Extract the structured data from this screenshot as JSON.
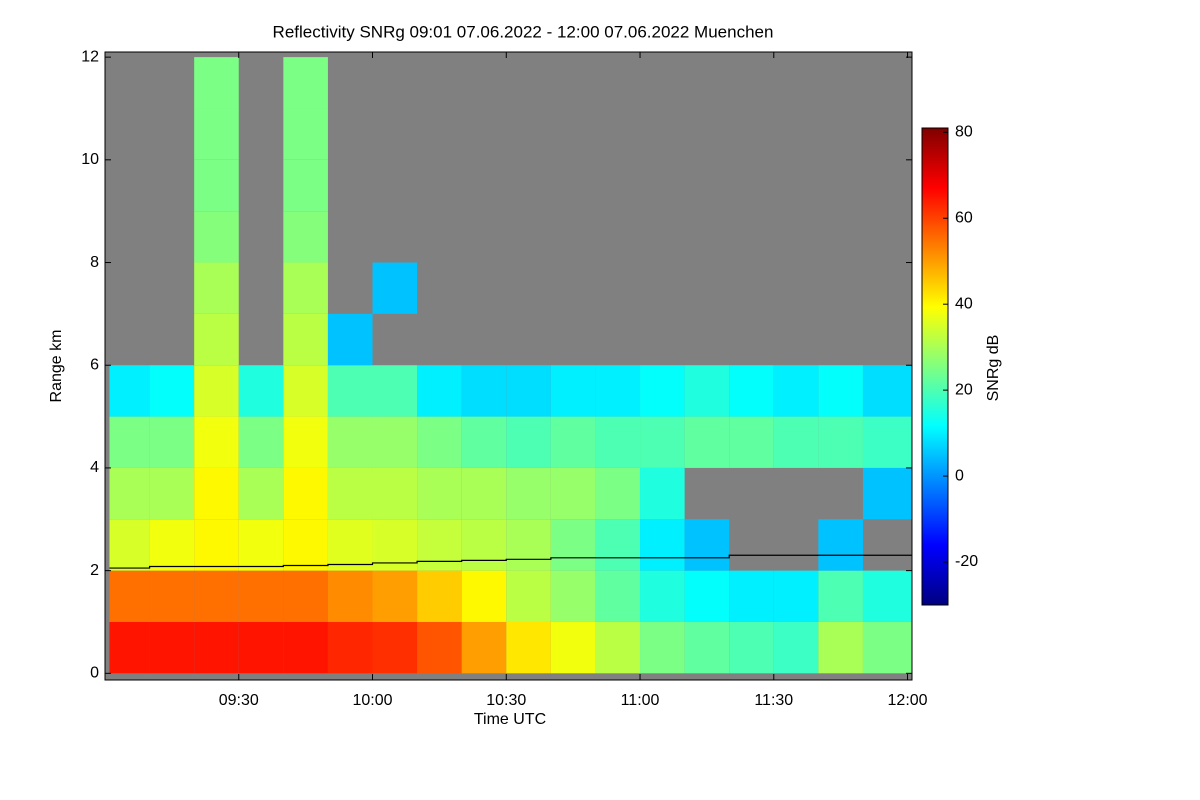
{
  "chart_data": {
    "type": "heatmap",
    "title": "Reflectivity SNRg   09:01 07.06.2022 - 12:00 07.06.2022 Muenchen",
    "xlabel": "Time UTC",
    "ylabel": "Range km",
    "colorbar_label": "SNRg dB",
    "x": [
      "09:01",
      "09:10",
      "09:20",
      "09:30",
      "09:40",
      "09:50",
      "10:00",
      "10:10",
      "10:20",
      "10:30",
      "10:40",
      "10:50",
      "11:00",
      "11:10",
      "11:20",
      "11:30",
      "11:40",
      "11:50"
    ],
    "xlim": [
      "09:00",
      "12:01"
    ],
    "xticks": [
      "09:30",
      "10:00",
      "10:30",
      "11:00",
      "11:30",
      "12:00"
    ],
    "y_edges": [
      0,
      1,
      2,
      3,
      4,
      5,
      6,
      7,
      8,
      9,
      10,
      11,
      12
    ],
    "ylim": [
      -0.13,
      12.1
    ],
    "yticks": [
      0,
      2,
      4,
      6,
      8,
      10,
      12
    ],
    "zlim": [
      -30,
      81
    ],
    "zticks": [
      -20,
      0,
      20,
      40,
      60,
      80
    ],
    "colormap": [
      "#000080",
      "#0000ff",
      "#0080ff",
      "#00ffff",
      "#80ff80",
      "#ffff00",
      "#ff8000",
      "#ff0000",
      "#800000"
    ],
    "background": "#808080",
    "values": [
      [
        65,
        65,
        65,
        65,
        65,
        63,
        62,
        58,
        50,
        42,
        38,
        32,
        25,
        22,
        20,
        18,
        30,
        25
      ],
      [
        55,
        55,
        55,
        55,
        55,
        52,
        50,
        45,
        40,
        32,
        28,
        22,
        15,
        12,
        10,
        10,
        20,
        15
      ],
      [
        35,
        38,
        40,
        38,
        40,
        36,
        35,
        33,
        32,
        30,
        25,
        20,
        10,
        5,
        null,
        null,
        5,
        null
      ],
      [
        30,
        30,
        40,
        30,
        40,
        32,
        32,
        30,
        30,
        28,
        28,
        25,
        15,
        null,
        null,
        null,
        null,
        5
      ],
      [
        25,
        25,
        38,
        25,
        38,
        28,
        28,
        25,
        22,
        20,
        22,
        20,
        20,
        22,
        22,
        20,
        20,
        18
      ],
      [
        10,
        12,
        35,
        15,
        35,
        20,
        20,
        10,
        8,
        8,
        10,
        10,
        12,
        15,
        12,
        10,
        12,
        8
      ],
      [
        null,
        null,
        32,
        null,
        32,
        5,
        null,
        null,
        null,
        null,
        null,
        null,
        null,
        null,
        null,
        null,
        null,
        null
      ],
      [
        null,
        null,
        30,
        null,
        30,
        null,
        5,
        null,
        null,
        null,
        null,
        null,
        null,
        null,
        null,
        null,
        null,
        null
      ],
      [
        null,
        null,
        26,
        null,
        26,
        null,
        null,
        null,
        null,
        null,
        null,
        null,
        null,
        null,
        null,
        null,
        null,
        null
      ],
      [
        null,
        null,
        25,
        null,
        25,
        null,
        null,
        null,
        null,
        null,
        null,
        null,
        null,
        null,
        null,
        null,
        null,
        null
      ],
      [
        null,
        null,
        25,
        null,
        25,
        null,
        null,
        null,
        null,
        null,
        null,
        null,
        null,
        null,
        null,
        null,
        null,
        null
      ],
      [
        null,
        null,
        25,
        null,
        25,
        null,
        null,
        null,
        null,
        null,
        null,
        null,
        null,
        null,
        null,
        null,
        null,
        null
      ]
    ],
    "overlay": {
      "color": "#000000",
      "values": [
        2.05,
        2.08,
        2.08,
        2.08,
        2.1,
        2.12,
        2.15,
        2.18,
        2.2,
        2.22,
        2.25,
        2.25,
        2.25,
        2.25,
        2.3,
        2.3,
        2.3,
        2.3
      ]
    }
  }
}
